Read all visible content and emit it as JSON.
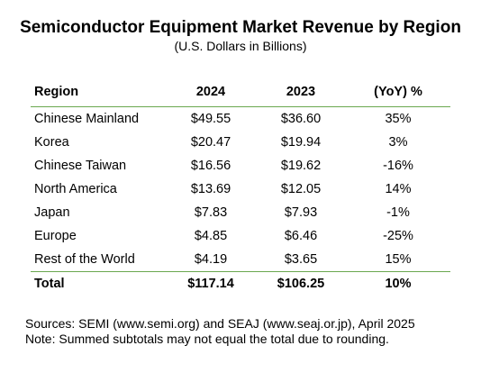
{
  "title": "Semiconductor Equipment Market Revenue by Region",
  "subtitle": "(U.S. Dollars in Billions)",
  "chart_data": {
    "type": "table",
    "columns": [
      "Region",
      "2024",
      "2023",
      "(YoY) %"
    ],
    "rows": [
      [
        "Chinese Mainland",
        "$49.55",
        "$36.60",
        "35%"
      ],
      [
        "Korea",
        "$20.47",
        "$19.94",
        "3%"
      ],
      [
        "Chinese Taiwan",
        "$16.56",
        "$19.62",
        "-16%"
      ],
      [
        "North America",
        "$13.69",
        "$12.05",
        "14%"
      ],
      [
        "Japan",
        "$7.83",
        "$7.93",
        "-1%"
      ],
      [
        "Europe",
        "$4.85",
        "$6.46",
        "-25%"
      ],
      [
        "Rest of the World",
        "$4.19",
        "$3.65",
        "15%"
      ]
    ],
    "total": [
      "Total",
      "$117.14",
      "$106.25",
      "10%"
    ]
  },
  "footnotes": {
    "sources": "Sources: SEMI (www.semi.org) and SEAJ (www.seaj.or.jp), April 2025",
    "note": "Note: Summed subtotals may not equal the total due to rounding."
  },
  "colors": {
    "rule": "#6aa84f"
  }
}
